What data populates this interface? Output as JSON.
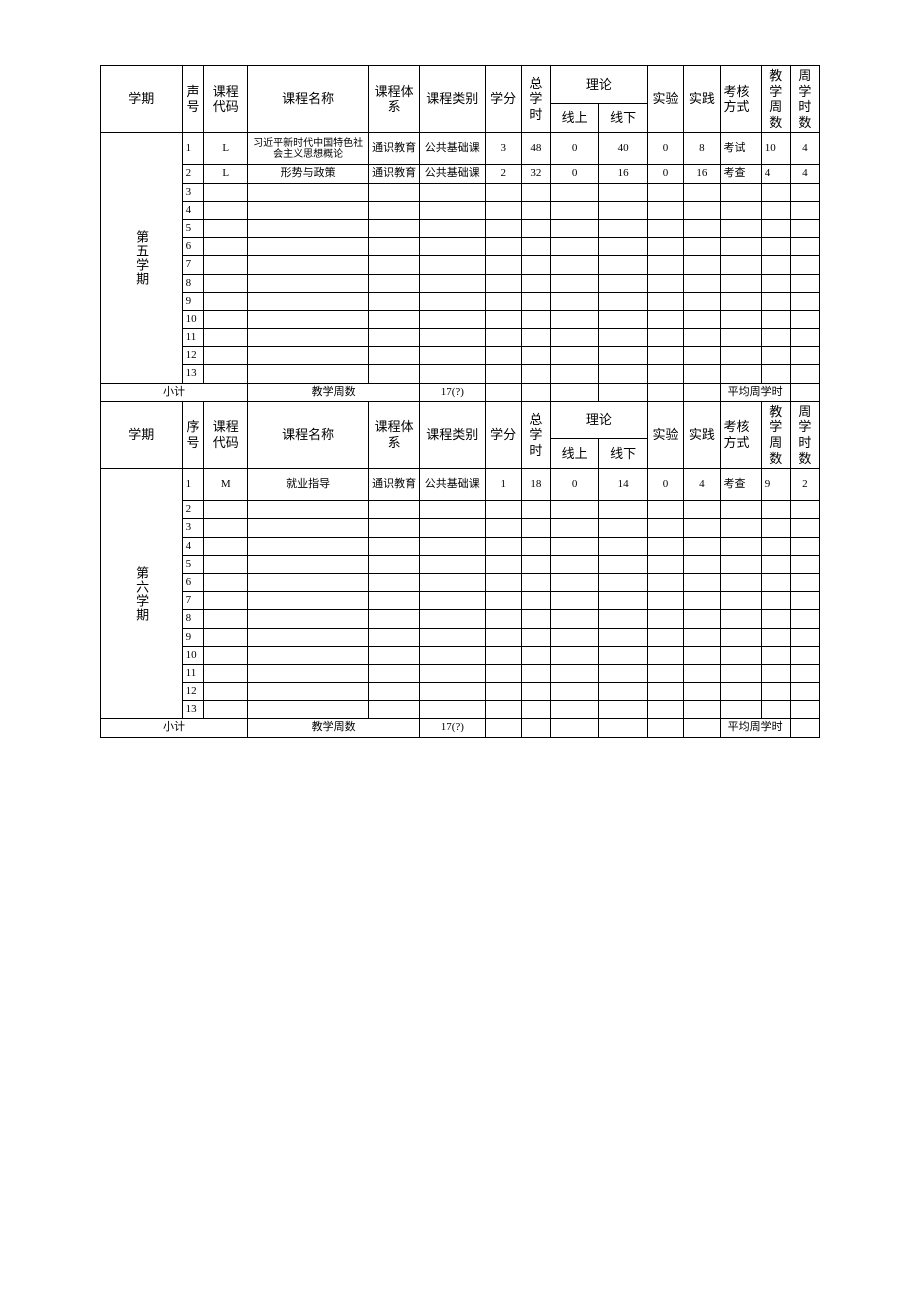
{
  "colors": {
    "background": "#ffffff",
    "border": "#000000",
    "text": "#000000"
  },
  "headers": {
    "semester": "学期",
    "semester_alt": "学期",
    "seq1": "声号",
    "seq2": "序号",
    "course_code": "课程代码",
    "course_name": "课程名称",
    "course_system": "课程体系",
    "course_type": "课程类别",
    "credit": "学分",
    "total_hours": "总学时",
    "theory": "理论",
    "online": "线上",
    "offline": "线下",
    "experiment": "实验",
    "practice": "实践",
    "exam_mode": "考核方式",
    "teach_weeks": "教学周数",
    "week_hours": "周学时数"
  },
  "semesters": {
    "s5": {
      "label": "第五学期",
      "subtotal_label": "小计",
      "teach_week_label": "教学周数",
      "teach_week_value": "17(?)",
      "avg_week_label": "平均周学时",
      "rows": [
        {
          "seq": "1",
          "code": "L",
          "name": "习近平新时代中国特色社会主义思想概论",
          "sys": "通识教育",
          "type": "公共基础课",
          "credit": "3",
          "total": "48",
          "online": "0",
          "offline": "40",
          "exp": "0",
          "prac": "8",
          "exam": "考试",
          "wknum": "10",
          "wkhr": "4"
        },
        {
          "seq": "2",
          "code": "L",
          "name": "形势与政策",
          "sys": "通识教育",
          "type": "公共基础课",
          "credit": "2",
          "total": "32",
          "online": "0",
          "offline": "16",
          "exp": "0",
          "prac": "16",
          "exam": "考查",
          "wknum": "4",
          "wkhr": "4"
        },
        {
          "seq": "3",
          "code": "",
          "name": "",
          "sys": "",
          "type": "",
          "credit": "",
          "total": "",
          "online": "",
          "offline": "",
          "exp": "",
          "prac": "",
          "exam": "",
          "wknum": "",
          "wkhr": ""
        },
        {
          "seq": "4",
          "code": "",
          "name": "",
          "sys": "",
          "type": "",
          "credit": "",
          "total": "",
          "online": "",
          "offline": "",
          "exp": "",
          "prac": "",
          "exam": "",
          "wknum": "",
          "wkhr": ""
        },
        {
          "seq": "5",
          "code": "",
          "name": "",
          "sys": "",
          "type": "",
          "credit": "",
          "total": "",
          "online": "",
          "offline": "",
          "exp": "",
          "prac": "",
          "exam": "",
          "wknum": "",
          "wkhr": ""
        },
        {
          "seq": "6",
          "code": "",
          "name": "",
          "sys": "",
          "type": "",
          "credit": "",
          "total": "",
          "online": "",
          "offline": "",
          "exp": "",
          "prac": "",
          "exam": "",
          "wknum": "",
          "wkhr": ""
        },
        {
          "seq": "7",
          "code": "",
          "name": "",
          "sys": "",
          "type": "",
          "credit": "",
          "total": "",
          "online": "",
          "offline": "",
          "exp": "",
          "prac": "",
          "exam": "",
          "wknum": "",
          "wkhr": ""
        },
        {
          "seq": "8",
          "code": "",
          "name": "",
          "sys": "",
          "type": "",
          "credit": "",
          "total": "",
          "online": "",
          "offline": "",
          "exp": "",
          "prac": "",
          "exam": "",
          "wknum": "",
          "wkhr": ""
        },
        {
          "seq": "9",
          "code": "",
          "name": "",
          "sys": "",
          "type": "",
          "credit": "",
          "total": "",
          "online": "",
          "offline": "",
          "exp": "",
          "prac": "",
          "exam": "",
          "wknum": "",
          "wkhr": ""
        },
        {
          "seq": "10",
          "code": "",
          "name": "",
          "sys": "",
          "type": "",
          "credit": "",
          "total": "",
          "online": "",
          "offline": "",
          "exp": "",
          "prac": "",
          "exam": "",
          "wknum": "",
          "wkhr": ""
        },
        {
          "seq": "11",
          "code": "",
          "name": "",
          "sys": "",
          "type": "",
          "credit": "",
          "total": "",
          "online": "",
          "offline": "",
          "exp": "",
          "prac": "",
          "exam": "",
          "wknum": "",
          "wkhr": ""
        },
        {
          "seq": "12",
          "code": "",
          "name": "",
          "sys": "",
          "type": "",
          "credit": "",
          "total": "",
          "online": "",
          "offline": "",
          "exp": "",
          "prac": "",
          "exam": "",
          "wknum": "",
          "wkhr": ""
        },
        {
          "seq": "13",
          "code": "",
          "name": "",
          "sys": "",
          "type": "",
          "credit": "",
          "total": "",
          "online": "",
          "offline": "",
          "exp": "",
          "prac": "",
          "exam": "",
          "wknum": "",
          "wkhr": ""
        }
      ]
    },
    "s6": {
      "label": "第六学期",
      "subtotal_label": "小计",
      "teach_week_label": "教学周数",
      "teach_week_value": "17(?)",
      "avg_week_label": "平均周学时",
      "rows": [
        {
          "seq": "1",
          "code": "M",
          "name": "就业指导",
          "sys": "通识教育",
          "type": "公共基础课",
          "credit": "1",
          "total": "18",
          "online": "0",
          "offline": "14",
          "exp": "0",
          "prac": "4",
          "exam": "考查",
          "wknum": "9",
          "wkhr": "2"
        },
        {
          "seq": "2",
          "code": "",
          "name": "",
          "sys": "",
          "type": "",
          "credit": "",
          "total": "",
          "online": "",
          "offline": "",
          "exp": "",
          "prac": "",
          "exam": "",
          "wknum": "",
          "wkhr": ""
        },
        {
          "seq": "3",
          "code": "",
          "name": "",
          "sys": "",
          "type": "",
          "credit": "",
          "total": "",
          "online": "",
          "offline": "",
          "exp": "",
          "prac": "",
          "exam": "",
          "wknum": "",
          "wkhr": ""
        },
        {
          "seq": "4",
          "code": "",
          "name": "",
          "sys": "",
          "type": "",
          "credit": "",
          "total": "",
          "online": "",
          "offline": "",
          "exp": "",
          "prac": "",
          "exam": "",
          "wknum": "",
          "wkhr": ""
        },
        {
          "seq": "5",
          "code": "",
          "name": "",
          "sys": "",
          "type": "",
          "credit": "",
          "total": "",
          "online": "",
          "offline": "",
          "exp": "",
          "prac": "",
          "exam": "",
          "wknum": "",
          "wkhr": ""
        },
        {
          "seq": "6",
          "code": "",
          "name": "",
          "sys": "",
          "type": "",
          "credit": "",
          "total": "",
          "online": "",
          "offline": "",
          "exp": "",
          "prac": "",
          "exam": "",
          "wknum": "",
          "wkhr": ""
        },
        {
          "seq": "7",
          "code": "",
          "name": "",
          "sys": "",
          "type": "",
          "credit": "",
          "total": "",
          "online": "",
          "offline": "",
          "exp": "",
          "prac": "",
          "exam": "",
          "wknum": "",
          "wkhr": ""
        },
        {
          "seq": "8",
          "code": "",
          "name": "",
          "sys": "",
          "type": "",
          "credit": "",
          "total": "",
          "online": "",
          "offline": "",
          "exp": "",
          "prac": "",
          "exam": "",
          "wknum": "",
          "wkhr": ""
        },
        {
          "seq": "9",
          "code": "",
          "name": "",
          "sys": "",
          "type": "",
          "credit": "",
          "total": "",
          "online": "",
          "offline": "",
          "exp": "",
          "prac": "",
          "exam": "",
          "wknum": "",
          "wkhr": ""
        },
        {
          "seq": "10",
          "code": "",
          "name": "",
          "sys": "",
          "type": "",
          "credit": "",
          "total": "",
          "online": "",
          "offline": "",
          "exp": "",
          "prac": "",
          "exam": "",
          "wknum": "",
          "wkhr": ""
        },
        {
          "seq": "11",
          "code": "",
          "name": "",
          "sys": "",
          "type": "",
          "credit": "",
          "total": "",
          "online": "",
          "offline": "",
          "exp": "",
          "prac": "",
          "exam": "",
          "wknum": "",
          "wkhr": ""
        },
        {
          "seq": "12",
          "code": "",
          "name": "",
          "sys": "",
          "type": "",
          "credit": "",
          "total": "",
          "online": "",
          "offline": "",
          "exp": "",
          "prac": "",
          "exam": "",
          "wknum": "",
          "wkhr": ""
        },
        {
          "seq": "13",
          "code": "",
          "name": "",
          "sys": "",
          "type": "",
          "credit": "",
          "total": "",
          "online": "",
          "offline": "",
          "exp": "",
          "prac": "",
          "exam": "",
          "wknum": "",
          "wkhr": ""
        }
      ]
    }
  }
}
